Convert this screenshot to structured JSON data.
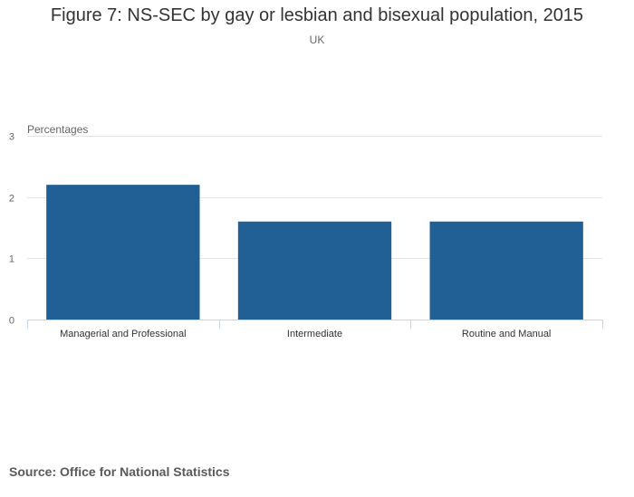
{
  "title": "Figure 7: NS-SEC by gay or lesbian and bisexual population, 2015",
  "subtitle": "UK",
  "source": "Source: Office for National Statistics",
  "colors": {
    "bar": "#206095",
    "grid": "#e6e6e6",
    "axis": "#ccd6eb",
    "text": "#333333",
    "muted": "#666666"
  },
  "chart_data": {
    "type": "bar",
    "title": "Figure 7: NS-SEC by gay or lesbian and bisexual population, 2015",
    "subtitle": "UK",
    "ylabel": "Percentages",
    "xlabel": "",
    "categories": [
      "Managerial and Professional",
      "Intermediate",
      "Routine and Manual"
    ],
    "values": [
      2.2,
      1.6,
      1.6
    ],
    "ylim": [
      0,
      3
    ],
    "yticks": [
      0,
      1,
      2,
      3
    ],
    "grid": true,
    "legend": "none"
  }
}
